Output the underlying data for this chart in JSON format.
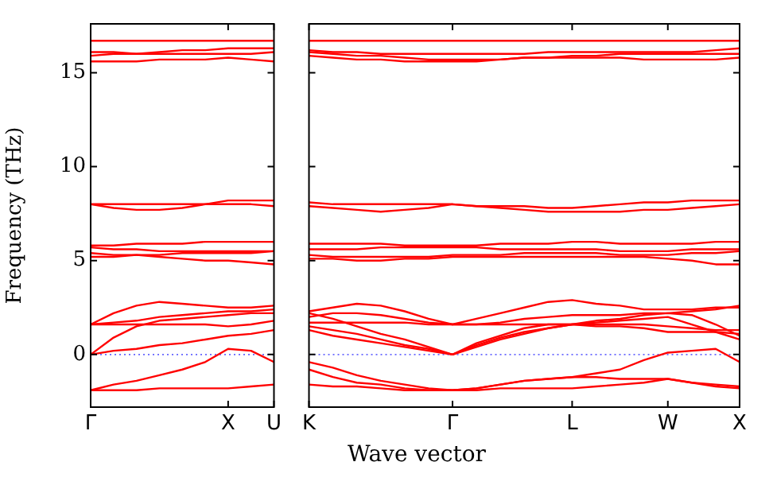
{
  "chart_data": [
    {
      "type": "line",
      "ylabel": "Frequency (THz)",
      "categories": [
        "Γ",
        null,
        null,
        null,
        null,
        null,
        "X",
        null,
        "U"
      ],
      "ylim": [
        -2.8,
        17.6
      ],
      "yticks": [
        0,
        5,
        10,
        15
      ],
      "grid": false,
      "legend": false,
      "ref_lines": [
        {
          "axis": "y",
          "value": 0,
          "color": "#6666ff",
          "line_style": "dotted"
        }
      ],
      "series": [
        {
          "color": "#ff0000",
          "values": [
            -1.9,
            -1.9,
            -1.9,
            -1.8,
            -1.8,
            -1.8,
            -1.8,
            -1.7,
            -1.6
          ]
        },
        {
          "color": "#ff0000",
          "values": [
            -1.9,
            -1.6,
            -1.4,
            -1.1,
            -0.8,
            -0.4,
            0.3,
            0.2,
            -0.4
          ]
        },
        {
          "color": "#ff0000",
          "values": [
            0,
            0.2,
            0.3,
            0.5,
            0.6,
            0.8,
            1.0,
            1.1,
            1.3
          ]
        },
        {
          "color": "#ff0000",
          "values": [
            0,
            0.9,
            1.5,
            1.8,
            1.9,
            2.0,
            2.1,
            2.2,
            2.2
          ]
        },
        {
          "color": "#ff0000",
          "values": [
            1.6,
            2.2,
            2.6,
            2.8,
            2.7,
            2.6,
            2.5,
            2.5,
            2.6
          ]
        },
        {
          "color": "#ff0000",
          "values": [
            1.6,
            1.7,
            1.8,
            2.0,
            2.1,
            2.2,
            2.3,
            2.3,
            2.4
          ]
        },
        {
          "color": "#ff0000",
          "values": [
            1.6,
            1.6,
            1.6,
            1.6,
            1.6,
            1.6,
            1.5,
            1.6,
            1.8
          ]
        },
        {
          "color": "#ff0000",
          "values": [
            5.8,
            5.8,
            5.9,
            5.9,
            5.9,
            6.0,
            6.0,
            6.0,
            6.0
          ]
        },
        {
          "color": "#ff0000",
          "values": [
            5.7,
            5.6,
            5.6,
            5.5,
            5.5,
            5.5,
            5.5,
            5.5,
            5.5
          ]
        },
        {
          "color": "#ff0000",
          "values": [
            5.4,
            5.3,
            5.3,
            5.2,
            5.1,
            5.0,
            5.0,
            4.9,
            4.8
          ]
        },
        {
          "color": "#ff0000",
          "values": [
            5.2,
            5.2,
            5.3,
            5.3,
            5.4,
            5.4,
            5.4,
            5.4,
            5.5
          ]
        },
        {
          "color": "#ff0000",
          "values": [
            8.0,
            8.0,
            8.0,
            8.0,
            8.0,
            8.0,
            8.0,
            8.0,
            7.9
          ]
        },
        {
          "color": "#ff0000",
          "values": [
            8.0,
            7.8,
            7.7,
            7.7,
            7.8,
            8.0,
            8.2,
            8.2,
            8.2
          ]
        },
        {
          "color": "#ff0000",
          "values": [
            16.7,
            16.7,
            16.7,
            16.7,
            16.7,
            16.7,
            16.7,
            16.7,
            16.7
          ]
        },
        {
          "color": "#ff0000",
          "values": [
            16.1,
            16.1,
            16.0,
            16.0,
            16.0,
            16.0,
            16.0,
            16.0,
            16.1
          ]
        },
        {
          "color": "#ff0000",
          "values": [
            15.9,
            16.0,
            16.0,
            16.1,
            16.2,
            16.2,
            16.3,
            16.3,
            16.3
          ]
        },
        {
          "color": "#ff0000",
          "values": [
            15.6,
            15.6,
            15.6,
            15.7,
            15.7,
            15.7,
            15.8,
            15.7,
            15.6
          ]
        }
      ]
    },
    {
      "type": "line",
      "xlabel": "Wave vector",
      "categories": [
        "K",
        null,
        null,
        null,
        null,
        null,
        "Γ",
        null,
        null,
        null,
        null,
        "L",
        null,
        null,
        null,
        "W",
        null,
        null,
        "X"
      ],
      "ylim": [
        -2.8,
        17.6
      ],
      "yticks": [
        0,
        5,
        10,
        15
      ],
      "tick_labels": "x",
      "grid": false,
      "legend": false,
      "ref_lines": [
        {
          "axis": "y",
          "value": 0,
          "color": "#6666ff",
          "line_style": "dotted"
        }
      ],
      "series": [
        {
          "color": "#ff0000",
          "values": [
            -1.6,
            -1.7,
            -1.7,
            -1.8,
            -1.9,
            -1.9,
            -1.9,
            -1.9,
            -1.8,
            -1.8,
            -1.8,
            -1.8,
            -1.7,
            -1.6,
            -1.5,
            -1.3,
            -1.5,
            -1.6,
            -1.7
          ]
        },
        {
          "color": "#ff0000",
          "values": [
            -0.8,
            -1.2,
            -1.5,
            -1.6,
            -1.8,
            -1.9,
            -1.9,
            -1.8,
            -1.6,
            -1.4,
            -1.3,
            -1.2,
            -1.0,
            -0.8,
            -0.3,
            0.1,
            0.2,
            0.3,
            -0.4
          ]
        },
        {
          "color": "#ff0000",
          "values": [
            -0.4,
            -0.7,
            -1.1,
            -1.4,
            -1.6,
            -1.8,
            -1.9,
            -1.8,
            -1.6,
            -1.4,
            -1.3,
            -1.2,
            -1.2,
            -1.3,
            -1.3,
            -1.3,
            -1.5,
            -1.7,
            -1.8
          ]
        },
        {
          "color": "#ff0000",
          "values": [
            1.3,
            1.0,
            0.8,
            0.6,
            0.4,
            0.2,
            0,
            0.4,
            0.8,
            1.1,
            1.4,
            1.6,
            1.8,
            1.9,
            2.1,
            2.2,
            2.1,
            1.6,
            1.0
          ]
        },
        {
          "color": "#ff0000",
          "values": [
            1.5,
            1.3,
            1.1,
            0.8,
            0.5,
            0.3,
            0,
            0.5,
            0.9,
            1.2,
            1.4,
            1.6,
            1.6,
            1.6,
            1.6,
            1.5,
            1.4,
            1.3,
            1.3
          ]
        },
        {
          "color": "#ff0000",
          "values": [
            2.2,
            1.9,
            1.5,
            1.1,
            0.8,
            0.4,
            0,
            0.6,
            1.0,
            1.4,
            1.6,
            1.6,
            1.5,
            1.5,
            1.4,
            1.2,
            1.2,
            1.2,
            1.1
          ]
        },
        {
          "color": "#ff0000",
          "values": [
            2.3,
            2.5,
            2.7,
            2.6,
            2.3,
            1.9,
            1.6,
            1.9,
            2.2,
            2.5,
            2.8,
            2.9,
            2.7,
            2.6,
            2.4,
            2.4,
            2.4,
            2.5,
            2.5
          ]
        },
        {
          "color": "#ff0000",
          "values": [
            2.0,
            2.2,
            2.2,
            2.1,
            1.9,
            1.7,
            1.6,
            1.6,
            1.7,
            1.9,
            2.0,
            2.1,
            2.1,
            2.1,
            2.2,
            2.2,
            2.3,
            2.4,
            2.6
          ]
        },
        {
          "color": "#ff0000",
          "values": [
            1.7,
            1.7,
            1.7,
            1.7,
            1.7,
            1.6,
            1.6,
            1.6,
            1.6,
            1.6,
            1.6,
            1.6,
            1.7,
            1.8,
            1.9,
            2.0,
            1.6,
            1.2,
            0.8
          ]
        },
        {
          "color": "#ff0000",
          "values": [
            5.9,
            5.9,
            5.9,
            5.9,
            5.8,
            5.8,
            5.8,
            5.8,
            5.9,
            5.9,
            5.9,
            6.0,
            6.0,
            5.9,
            5.9,
            5.9,
            5.9,
            6.0,
            6.0
          ]
        },
        {
          "color": "#ff0000",
          "values": [
            5.6,
            5.6,
            5.6,
            5.7,
            5.7,
            5.7,
            5.7,
            5.7,
            5.6,
            5.6,
            5.6,
            5.6,
            5.6,
            5.5,
            5.5,
            5.5,
            5.6,
            5.6,
            5.6
          ]
        },
        {
          "color": "#ff0000",
          "values": [
            5.3,
            5.2,
            5.2,
            5.2,
            5.2,
            5.2,
            5.3,
            5.3,
            5.3,
            5.4,
            5.4,
            5.4,
            5.4,
            5.3,
            5.3,
            5.3,
            5.4,
            5.4,
            5.5
          ]
        },
        {
          "color": "#ff0000",
          "values": [
            5.1,
            5.1,
            5.0,
            5.0,
            5.1,
            5.1,
            5.2,
            5.2,
            5.2,
            5.2,
            5.2,
            5.2,
            5.2,
            5.2,
            5.2,
            5.1,
            5.0,
            4.8,
            4.8
          ]
        },
        {
          "color": "#ff0000",
          "values": [
            8.1,
            8.0,
            8.0,
            8.0,
            8.0,
            8.0,
            8.0,
            7.9,
            7.9,
            7.9,
            7.8,
            7.8,
            7.9,
            8.0,
            8.1,
            8.1,
            8.2,
            8.2,
            8.2
          ]
        },
        {
          "color": "#ff0000",
          "values": [
            7.9,
            7.8,
            7.7,
            7.6,
            7.7,
            7.8,
            8.0,
            7.9,
            7.8,
            7.7,
            7.6,
            7.6,
            7.6,
            7.6,
            7.7,
            7.7,
            7.8,
            7.9,
            8.0
          ]
        },
        {
          "color": "#ff0000",
          "values": [
            16.7,
            16.7,
            16.7,
            16.7,
            16.7,
            16.7,
            16.7,
            16.7,
            16.7,
            16.7,
            16.7,
            16.7,
            16.7,
            16.7,
            16.7,
            16.7,
            16.7,
            16.7,
            16.7
          ]
        },
        {
          "color": "#ff0000",
          "values": [
            16.2,
            16.1,
            16.1,
            16.0,
            16.0,
            16.0,
            16.0,
            16.0,
            16.0,
            16.0,
            16.1,
            16.1,
            16.1,
            16.1,
            16.1,
            16.1,
            16.1,
            16.2,
            16.3
          ]
        },
        {
          "color": "#ff0000",
          "values": [
            15.9,
            15.8,
            15.7,
            15.7,
            15.6,
            15.6,
            15.6,
            15.6,
            15.7,
            15.8,
            15.8,
            15.9,
            15.9,
            16.0,
            16.0,
            16.0,
            16.0,
            16.0,
            16.0
          ]
        },
        {
          "color": "#ff0000",
          "values": [
            16.1,
            16.0,
            15.9,
            15.9,
            15.8,
            15.7,
            15.7,
            15.7,
            15.7,
            15.8,
            15.8,
            15.8,
            15.8,
            15.8,
            15.7,
            15.7,
            15.7,
            15.7,
            15.8
          ]
        }
      ]
    }
  ]
}
